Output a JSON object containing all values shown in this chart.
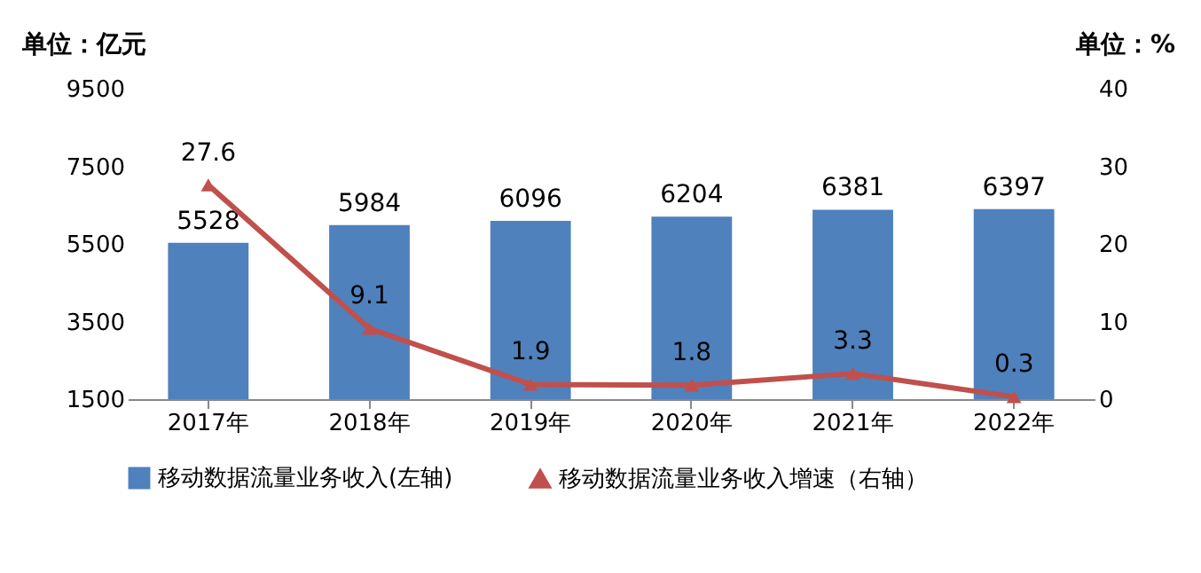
{
  "chart_data": {
    "type": "bar",
    "ylabel": "单位：亿元",
    "y2label": "单位：%",
    "categories": [
      "2017年",
      "2018年",
      "2019年",
      "2020年",
      "2021年",
      "2022年"
    ],
    "series": [
      {
        "name": "移动数据流量业务收入(左轴)",
        "color": "#4f81bd",
        "values": [
          5528,
          5984,
          6096,
          6204,
          6381,
          6397
        ]
      },
      {
        "name": "移动数据流量业务收入增速（右轴）",
        "type": "line",
        "axis": "y2",
        "color": "#c0504d",
        "marker": "triangle",
        "values": [
          27.6,
          9.1,
          1.9,
          1.8,
          3.3,
          0.3
        ]
      }
    ],
    "ylim": [
      1500,
      9500
    ],
    "yticks": [
      1500,
      3500,
      5500,
      7500,
      9500
    ],
    "y2lim": [
      0,
      40
    ],
    "y2ticks": [
      0,
      10,
      20,
      30,
      40
    ],
    "data_labels": true,
    "legend": "bottom",
    "grid": false
  }
}
